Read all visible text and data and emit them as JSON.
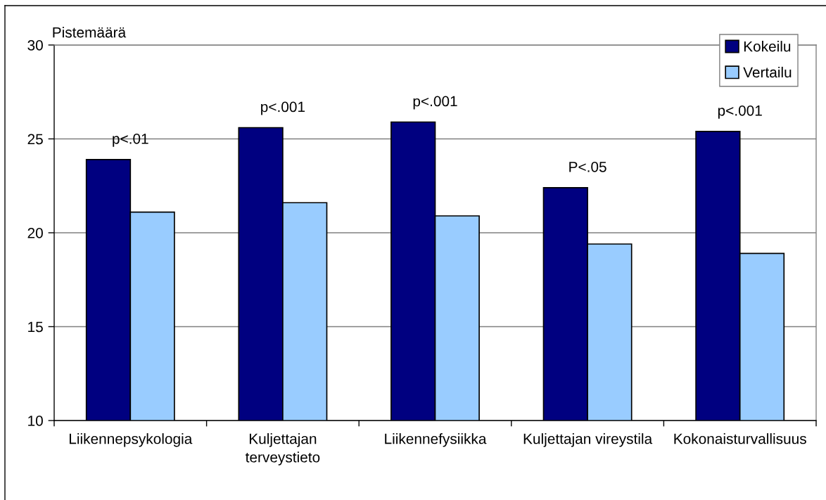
{
  "chart_data": {
    "type": "bar",
    "ylabel": "Pistemäärä",
    "categories": [
      "Liikennepsykologia",
      "Kuljettajan\nterveystieto",
      "Liikennefysiikka",
      "Kuljettajan vireystila",
      "Kokonaisturvallisuus"
    ],
    "series": [
      {
        "name": "Kokeilu",
        "color": "#000080",
        "values": [
          23.9,
          25.6,
          25.9,
          22.4,
          25.4
        ]
      },
      {
        "name": "Vertailu",
        "color": "#99ccff",
        "values": [
          21.1,
          21.6,
          20.9,
          19.4,
          18.9
        ]
      }
    ],
    "ylim": [
      10,
      30
    ],
    "yticks": [
      10,
      15,
      20,
      25,
      30
    ],
    "grid": "y",
    "legend": "top right",
    "annotations": [
      {
        "text": "p<.01",
        "x": "Liikennepsykologia",
        "y": 23.9
      },
      {
        "text": "p<.001",
        "x": "Kuljettajan\nterveystieto",
        "y": 25.6
      },
      {
        "text": "p<.001",
        "x": "Liikennefysiikka",
        "y": 25.9
      },
      {
        "text": "P<.05",
        "x": "Kuljettajan vireystila",
        "y": 22.4
      },
      {
        "text": "p<.001",
        "x": "Kokonaisturvallisuus",
        "y": 25.4
      }
    ]
  }
}
